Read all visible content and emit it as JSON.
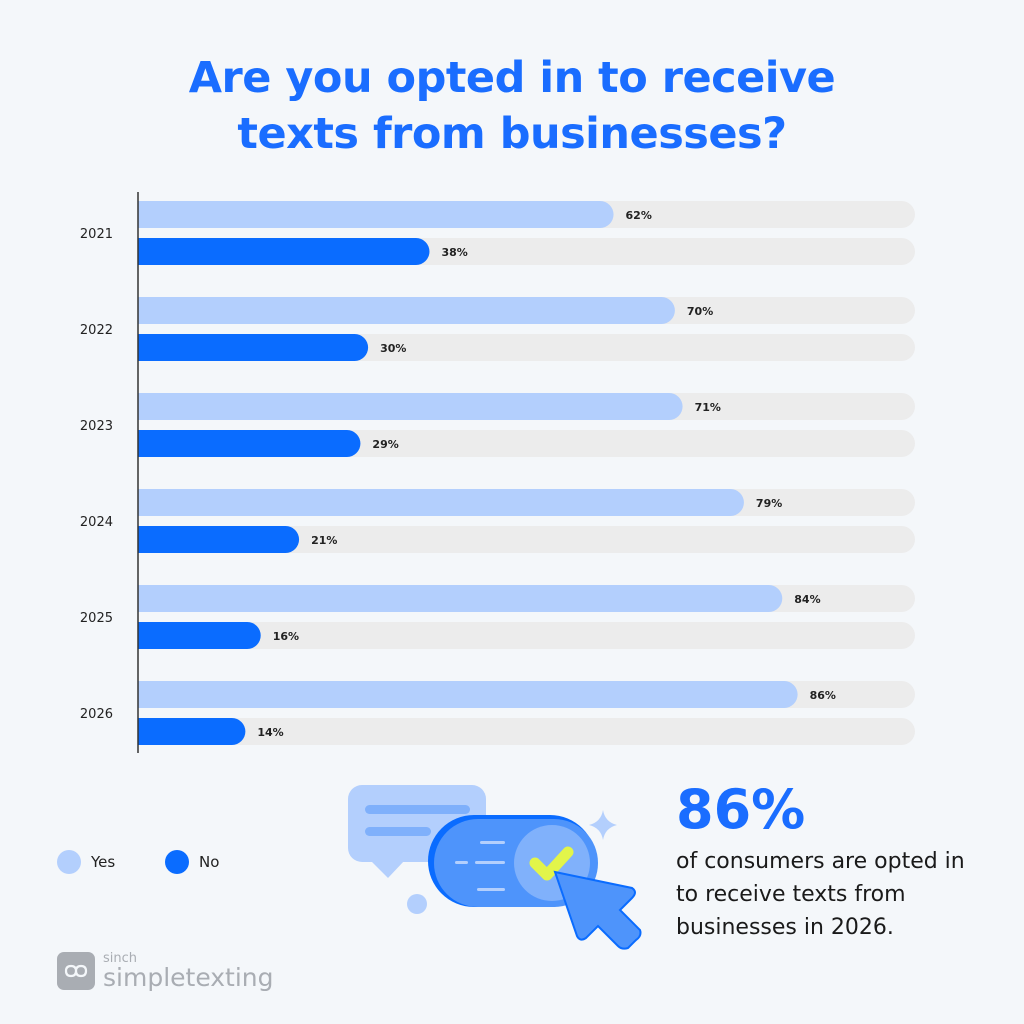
{
  "title_line1": "Are you opted in to receive",
  "title_line2": "texts from businesses?",
  "chart_data": {
    "type": "bar",
    "orientation": "horizontal",
    "categories": [
      "2021",
      "2022",
      "2023",
      "2024",
      "2025",
      "2026"
    ],
    "series": [
      {
        "name": "Yes",
        "values": [
          62,
          70,
          71,
          79,
          84,
          86
        ],
        "color": "#b3cffd"
      },
      {
        "name": "No",
        "values": [
          38,
          30,
          29,
          21,
          16,
          14
        ],
        "color": "#0a6cff"
      }
    ],
    "value_labels": {
      "Yes": [
        "62%",
        "70%",
        "71%",
        "79%",
        "84%",
        "86%"
      ],
      "No": [
        "38%",
        "30%",
        "29%",
        "21%",
        "16%",
        "14%"
      ]
    },
    "xlim": [
      0,
      100
    ],
    "track_color": "#ececec",
    "legend_position": "bottom-left"
  },
  "legend": {
    "yes": "Yes",
    "no": "No"
  },
  "callout": {
    "stat": "86%",
    "text": "of consumers are opted in to receive texts from businesses in 2026."
  },
  "logo": {
    "sinch": "sinch",
    "name": "simpletexting"
  }
}
